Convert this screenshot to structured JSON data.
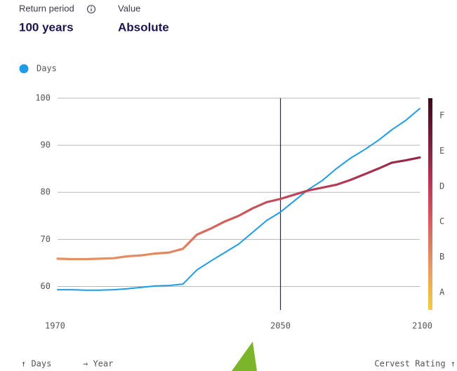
{
  "chart_data": {
    "type": "line",
    "controls": [
      {
        "label": "Return period",
        "value": "100 years"
      },
      {
        "label": "Value",
        "value": "Absolute"
      }
    ],
    "x": [
      1970,
      1975,
      1980,
      1985,
      1990,
      1995,
      2000,
      2005,
      2010,
      2015,
      2020,
      2025,
      2030,
      2035,
      2040,
      2045,
      2050,
      2055,
      2060,
      2065,
      2070,
      2075,
      2080,
      2085,
      2090,
      2095,
      2100
    ],
    "series": [
      {
        "name": "Days",
        "color": "#1f9be8",
        "values": [
          59.3,
          59.3,
          59.2,
          59.2,
          59.3,
          59.5,
          59.8,
          60.1,
          60.2,
          60.5,
          63.5,
          65.4,
          67.2,
          69.0,
          71.5,
          74.0,
          75.8,
          78.2,
          80.6,
          82.5,
          85.0,
          87.2,
          89.0,
          91.0,
          93.3,
          95.3,
          97.8
        ]
      },
      {
        "color_by": "rating_colors",
        "values": [
          65.9,
          65.8,
          65.8,
          65.9,
          66.0,
          66.4,
          66.6,
          67.0,
          67.2,
          68.0,
          71.0,
          72.3,
          73.8,
          75.0,
          76.6,
          77.9,
          78.6,
          79.5,
          80.4,
          81.0,
          81.6,
          82.6,
          83.8,
          85.0,
          86.3,
          86.8,
          87.4
        ]
      }
    ],
    "xlim": [
      1970,
      2100
    ],
    "xticks": [
      1970,
      2050,
      2100
    ],
    "ylim": [
      55,
      100
    ],
    "yticks": [
      60,
      70,
      80,
      90,
      100
    ],
    "grid": true,
    "marker_x": 2050,
    "rating_labels": [
      "A",
      "B",
      "C",
      "D",
      "E",
      "F"
    ],
    "rating_colors": [
      "#f7c948",
      "#ec9a5e",
      "#d4645f",
      "#b23a55",
      "#7d1d3d",
      "#3b0a1c"
    ],
    "y_axis_label": "↑ Days",
    "x_axis_label": "→ Year",
    "rating_axis_label": "Cervest Rating ↑"
  }
}
